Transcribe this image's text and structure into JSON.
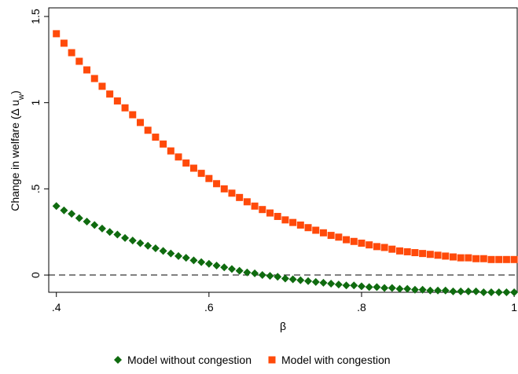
{
  "chart_data": {
    "type": "scatter",
    "xlabel": "β",
    "ylabel_parts": [
      "Change in welfare (Δ u",
      "w",
      ")"
    ],
    "x": [
      0.4,
      0.41,
      0.42,
      0.43,
      0.44,
      0.45,
      0.46,
      0.47,
      0.48,
      0.49,
      0.5,
      0.51,
      0.52,
      0.53,
      0.54,
      0.55,
      0.56,
      0.57,
      0.58,
      0.59,
      0.6,
      0.61,
      0.62,
      0.63,
      0.64,
      0.65,
      0.66,
      0.67,
      0.68,
      0.69,
      0.7,
      0.71,
      0.72,
      0.73,
      0.74,
      0.75,
      0.76,
      0.77,
      0.78,
      0.79,
      0.8,
      0.81,
      0.82,
      0.83,
      0.84,
      0.85,
      0.86,
      0.87,
      0.88,
      0.89,
      0.9,
      0.91,
      0.92,
      0.93,
      0.94,
      0.95,
      0.96,
      0.97,
      0.98,
      0.99,
      1.0
    ],
    "series": [
      {
        "name": "Model without congestion",
        "color": "#0f6b0f",
        "marker": "diamond",
        "values": [
          0.4,
          0.375,
          0.355,
          0.33,
          0.31,
          0.29,
          0.27,
          0.25,
          0.235,
          0.215,
          0.2,
          0.185,
          0.17,
          0.155,
          0.14,
          0.125,
          0.11,
          0.1,
          0.085,
          0.075,
          0.065,
          0.055,
          0.045,
          0.035,
          0.025,
          0.015,
          0.01,
          0.0,
          -0.005,
          -0.01,
          -0.02,
          -0.025,
          -0.03,
          -0.035,
          -0.04,
          -0.045,
          -0.05,
          -0.055,
          -0.06,
          -0.06,
          -0.065,
          -0.07,
          -0.07,
          -0.075,
          -0.075,
          -0.08,
          -0.08,
          -0.085,
          -0.085,
          -0.09,
          -0.09,
          -0.09,
          -0.095,
          -0.095,
          -0.095,
          -0.095,
          -0.1,
          -0.1,
          -0.1,
          -0.1,
          -0.1
        ]
      },
      {
        "name": "Model with congestion",
        "color": "#ff4a0a",
        "marker": "square",
        "values": [
          1.4,
          1.345,
          1.29,
          1.24,
          1.19,
          1.14,
          1.095,
          1.05,
          1.01,
          0.97,
          0.93,
          0.885,
          0.84,
          0.8,
          0.76,
          0.72,
          0.685,
          0.65,
          0.62,
          0.59,
          0.56,
          0.53,
          0.5,
          0.475,
          0.45,
          0.425,
          0.4,
          0.38,
          0.36,
          0.34,
          0.32,
          0.305,
          0.29,
          0.275,
          0.26,
          0.245,
          0.23,
          0.22,
          0.205,
          0.195,
          0.185,
          0.175,
          0.165,
          0.16,
          0.15,
          0.14,
          0.135,
          0.13,
          0.125,
          0.12,
          0.115,
          0.11,
          0.105,
          0.1,
          0.1,
          0.095,
          0.095,
          0.09,
          0.09,
          0.09,
          0.09
        ]
      }
    ],
    "xlim": [
      0.39,
      1.004
    ],
    "ylim": [
      -0.1,
      1.55
    ],
    "xticks": [
      {
        "value": 0.4,
        "label": ".4"
      },
      {
        "value": 0.6,
        "label": ".6"
      },
      {
        "value": 0.8,
        "label": ".8"
      },
      1
    ],
    "yticks": [
      0,
      {
        "value": 0.5,
        "label": ".5"
      },
      1,
      1.5
    ],
    "hline": 0,
    "legend": "bottom"
  }
}
